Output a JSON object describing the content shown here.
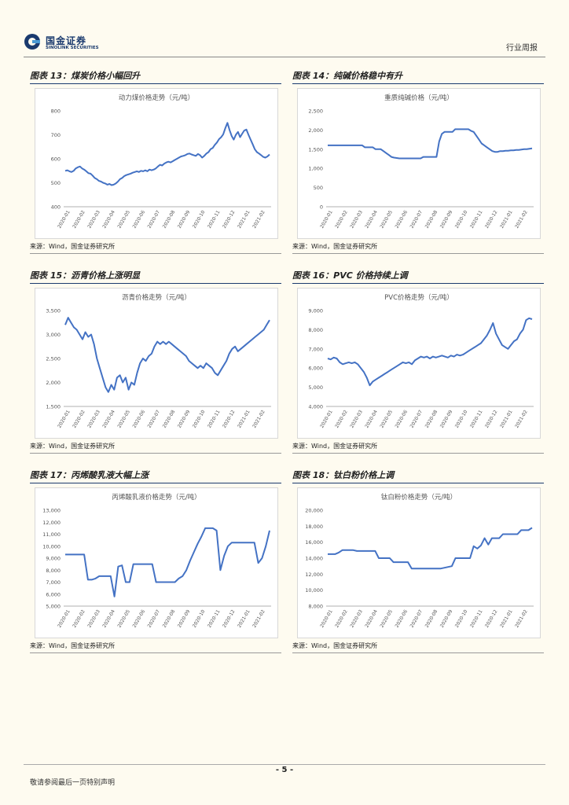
{
  "header": {
    "logo_cn": "国金证券",
    "logo_en": "SINOLINK SECURITIES",
    "doc_type": "行业周报"
  },
  "footer": {
    "page_number": "- 5 -",
    "disclaimer": "敬请参阅最后一页特别声明"
  },
  "colors": {
    "line": "#4472c4",
    "accent": "#1a3a6e"
  },
  "x_labels": [
    "2020-01",
    "2020-02",
    "2020-03",
    "2020-04",
    "2020-05",
    "2020-06",
    "2020-07",
    "2020-08",
    "2020-09",
    "2020-10",
    "2020-11",
    "2020-12",
    "2021-01",
    "2021-02"
  ],
  "panels": [
    {
      "figure_title": "图表 13：煤炭价格小幅回升",
      "source": "来源：Wind，国金证券研究所",
      "chart_data": {
        "type": "line",
        "title": "动力煤价格走势（元/吨）",
        "ylim": [
          400,
          800
        ],
        "yticks": [
          400,
          500,
          600,
          700,
          800
        ],
        "ytick_labels": [
          "400",
          "500",
          "600",
          "700",
          "800"
        ],
        "values": [
          550,
          552,
          548,
          545,
          550,
          560,
          565,
          568,
          560,
          555,
          548,
          540,
          538,
          530,
          520,
          515,
          508,
          505,
          500,
          497,
          492,
          495,
          490,
          492,
          497,
          505,
          515,
          520,
          528,
          532,
          535,
          538,
          542,
          545,
          548,
          545,
          550,
          548,
          552,
          548,
          555,
          552,
          555,
          560,
          568,
          575,
          572,
          580,
          585,
          588,
          585,
          590,
          595,
          600,
          605,
          610,
          612,
          615,
          620,
          622,
          618,
          615,
          612,
          620,
          615,
          605,
          612,
          622,
          628,
          640,
          645,
          658,
          668,
          682,
          690,
          702,
          728,
          750,
          720,
          695,
          680,
          700,
          712,
          690,
          705,
          718,
          722,
          700,
          680,
          660,
          640,
          628,
          622,
          615,
          608,
          605,
          610,
          618
        ]
      }
    },
    {
      "figure_title": "图表 14：纯碱价格稳中有升",
      "source": "来源：Wind，国金证券研究所",
      "chart_data": {
        "type": "line",
        "title": "重质纯碱价格（元/吨）",
        "ylim": [
          0,
          2500
        ],
        "yticks": [
          0,
          500,
          1000,
          1500,
          2000,
          2500
        ],
        "ytick_labels": [
          "0",
          "500",
          "1,000",
          "1,500",
          "2,000",
          "2,500"
        ],
        "values": [
          1600,
          1600,
          1600,
          1600,
          1600,
          1600,
          1600,
          1600,
          1600,
          1600,
          1600,
          1600,
          1600,
          1600,
          1550,
          1550,
          1550,
          1550,
          1500,
          1500,
          1500,
          1450,
          1400,
          1350,
          1300,
          1280,
          1270,
          1260,
          1260,
          1260,
          1260,
          1260,
          1260,
          1260,
          1260,
          1260,
          1300,
          1300,
          1300,
          1300,
          1300,
          1300,
          1700,
          1900,
          1950,
          1950,
          1950,
          1950,
          2020,
          2020,
          2020,
          2020,
          2020,
          2020,
          1980,
          1950,
          1850,
          1750,
          1650,
          1600,
          1550,
          1500,
          1450,
          1430,
          1430,
          1450,
          1450,
          1460,
          1460,
          1470,
          1470,
          1480,
          1480,
          1490,
          1500,
          1500,
          1510,
          1520
        ]
      }
    },
    {
      "figure_title": "图表 15：沥青价格上涨明显",
      "source": "来源：Wind，国金证券研究所",
      "chart_data": {
        "type": "line",
        "title": "沥青价格走势（元/吨）",
        "ylim": [
          1500,
          3500
        ],
        "yticks": [
          1500,
          2000,
          2500,
          3000,
          3500
        ],
        "ytick_labels": [
          "1,500",
          "2,000",
          "2,500",
          "3,000",
          "3,500"
        ],
        "values": [
          3200,
          3350,
          3250,
          3150,
          3100,
          3000,
          2900,
          3050,
          2950,
          3000,
          2800,
          2500,
          2300,
          2100,
          1900,
          1800,
          1950,
          1850,
          2100,
          2150,
          2000,
          2100,
          1850,
          2000,
          1950,
          2200,
          2400,
          2500,
          2450,
          2550,
          2600,
          2750,
          2850,
          2800,
          2850,
          2800,
          2850,
          2800,
          2750,
          2700,
          2650,
          2600,
          2550,
          2450,
          2400,
          2350,
          2300,
          2350,
          2300,
          2400,
          2350,
          2300,
          2200,
          2150,
          2250,
          2350,
          2450,
          2600,
          2700,
          2750,
          2650,
          2700,
          2750,
          2800,
          2850,
          2900,
          2950,
          3000,
          3050,
          3100,
          3200,
          3300
        ]
      }
    },
    {
      "figure_title": "图表 16：PVC 价格持续上调",
      "source": "来源：Wind，国金证券研究所",
      "chart_data": {
        "type": "line",
        "title": "PVC价格走势（元/吨）",
        "ylim": [
          4000,
          9000
        ],
        "yticks": [
          4000,
          5000,
          6000,
          7000,
          8000,
          9000
        ],
        "ytick_labels": [
          "4,000",
          "5,000",
          "6,000",
          "7,000",
          "8,000",
          "9,000"
        ],
        "values": [
          6500,
          6450,
          6550,
          6500,
          6300,
          6200,
          6250,
          6300,
          6250,
          6300,
          6200,
          6000,
          5800,
          5500,
          5100,
          5300,
          5400,
          5500,
          5600,
          5700,
          5800,
          5900,
          6000,
          6100,
          6200,
          6300,
          6250,
          6300,
          6200,
          6400,
          6500,
          6600,
          6550,
          6600,
          6500,
          6600,
          6550,
          6600,
          6650,
          6600,
          6550,
          6650,
          6600,
          6700,
          6650,
          6700,
          6800,
          6900,
          7000,
          7100,
          7200,
          7300,
          7500,
          7700,
          8000,
          8350,
          7800,
          7500,
          7200,
          7100,
          7000,
          7200,
          7400,
          7500,
          7800,
          8000,
          8500,
          8600,
          8550
        ]
      }
    },
    {
      "figure_title": "图表 17：丙烯酸乳液大幅上涨",
      "source": "来源：Wind，国金证券研究所",
      "chart_data": {
        "type": "line",
        "title": "丙烯酸乳液价格走势（元/吨）",
        "ylim": [
          5000,
          13000
        ],
        "yticks": [
          5000,
          6000,
          7000,
          8000,
          9000,
          10000,
          11000,
          12000,
          13000
        ],
        "ytick_labels": [
          "5,000",
          "6,000",
          "7,000",
          "8,000",
          "9,000",
          "10,000",
          "11,000",
          "12,000",
          "13,000"
        ],
        "values": [
          9300,
          9300,
          9300,
          9300,
          9300,
          9300,
          7200,
          7200,
          7300,
          7500,
          7500,
          7500,
          7500,
          5800,
          8300,
          8400,
          7000,
          7000,
          8500,
          8500,
          8500,
          8500,
          8500,
          8500,
          7000,
          7000,
          7000,
          7000,
          7000,
          7000,
          7300,
          7500,
          8000,
          8800,
          9500,
          10200,
          10800,
          11500,
          11500,
          11500,
          11300,
          8000,
          9200,
          10000,
          10300,
          10300,
          10300,
          10300,
          10300,
          10300,
          10300,
          8600,
          9000,
          10000,
          11300
        ]
      }
    },
    {
      "figure_title": "图表 18：钛白粉价格上调",
      "source": "来源：Wind，国金证券研究所",
      "chart_data": {
        "type": "line",
        "title": "钛白粉价格走势（元/吨）",
        "ylim": [
          8000,
          20000
        ],
        "yticks": [
          8000,
          10000,
          12000,
          14000,
          16000,
          18000,
          20000
        ],
        "ytick_labels": [
          "8,000",
          "10,000",
          "12,000",
          "14,000",
          "16,000",
          "18,000",
          "20,000"
        ],
        "values": [
          14500,
          14500,
          14500,
          14700,
          15000,
          15000,
          15000,
          15000,
          14900,
          14900,
          14900,
          14900,
          14900,
          14900,
          14000,
          14000,
          14000,
          14000,
          13500,
          13500,
          13500,
          13500,
          13500,
          12700,
          12700,
          12700,
          12700,
          12700,
          12700,
          12700,
          12700,
          12700,
          12800,
          12900,
          13000,
          14000,
          14000,
          14000,
          14000,
          14000,
          15500,
          15200,
          15600,
          16500,
          15700,
          16500,
          16500,
          16500,
          17000,
          17000,
          17000,
          17000,
          17000,
          17500,
          17500,
          17500,
          17800
        ]
      }
    }
  ]
}
